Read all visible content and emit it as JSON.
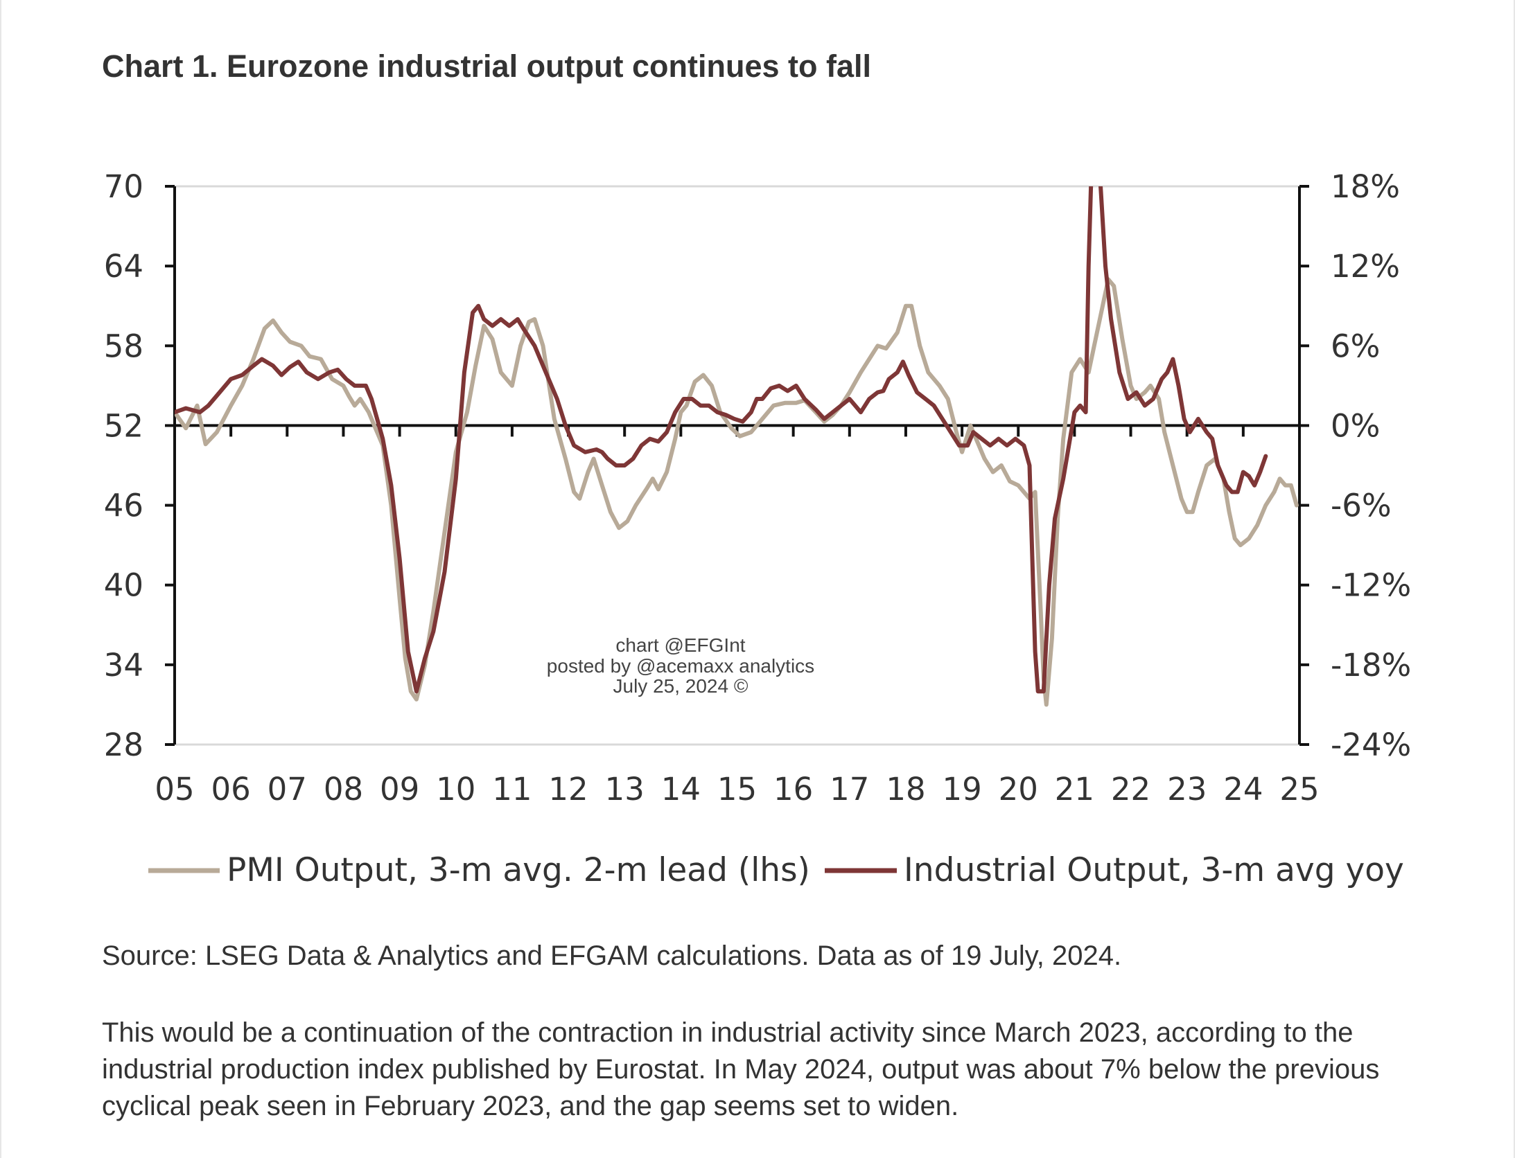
{
  "title": "Chart 1. Eurozone industrial output continues to fall",
  "source": "Source: LSEG Data & Analytics and EFGAM calculations. Data as of 19 July, 2024.",
  "paragraph": "This would be a continuation of the contraction in industrial activity since March 2023, according to the industrial production index published by Eurostat. In May 2024, output was about 7% below the previous cyclical peak seen in February 2023, and the gap seems set to widen.",
  "watermark": {
    "line1": "chart @EFGInt",
    "line2": "posted by @acemaxx analytics",
    "line3": "July 25, 2024 ©"
  },
  "colors": {
    "pmi": "#b8aa98",
    "industrial": "#7e3636",
    "axis": "#111111",
    "grid": "#d9d9d9",
    "text": "#333333"
  },
  "chart_data": {
    "type": "line",
    "x_tick_labels": [
      "05",
      "06",
      "07",
      "08",
      "09",
      "10",
      "11",
      "12",
      "13",
      "14",
      "15",
      "16",
      "17",
      "18",
      "19",
      "20",
      "21",
      "22",
      "23",
      "24",
      "25"
    ],
    "x_range": [
      2005,
      2025
    ],
    "y_left": {
      "ticks": [
        "70",
        "64",
        "58",
        "52",
        "46",
        "40",
        "34",
        "28"
      ],
      "range": [
        28,
        70
      ]
    },
    "y_right": {
      "ticks": [
        "18%",
        "12%",
        "6%",
        "0%",
        "-6%",
        "-12%",
        "-18%",
        "-24%"
      ],
      "range": [
        -24,
        18
      ]
    },
    "legend": [
      "PMI Output, 3-m avg. 2-m lead (lhs)",
      "Industrial Output, 3-m avg yoy"
    ],
    "series": [
      {
        "name": "PMI Output, 3-m avg. 2-m lead (lhs)",
        "axis": "left",
        "points": [
          [
            2005.0,
            53.0
          ],
          [
            2005.2,
            51.8
          ],
          [
            2005.4,
            53.5
          ],
          [
            2005.55,
            50.6
          ],
          [
            2005.75,
            51.5
          ],
          [
            2006.0,
            53.5
          ],
          [
            2006.2,
            55.0
          ],
          [
            2006.4,
            57.0
          ],
          [
            2006.6,
            59.3
          ],
          [
            2006.75,
            59.9
          ],
          [
            2006.9,
            59.0
          ],
          [
            2007.05,
            58.3
          ],
          [
            2007.25,
            58.0
          ],
          [
            2007.4,
            57.2
          ],
          [
            2007.6,
            57.0
          ],
          [
            2007.8,
            55.5
          ],
          [
            2008.0,
            55.0
          ],
          [
            2008.1,
            54.2
          ],
          [
            2008.2,
            53.5
          ],
          [
            2008.3,
            54.0
          ],
          [
            2008.45,
            53.0
          ],
          [
            2008.55,
            52.0
          ],
          [
            2008.7,
            50.5
          ],
          [
            2008.85,
            46.0
          ],
          [
            2009.0,
            39.0
          ],
          [
            2009.1,
            34.5
          ],
          [
            2009.2,
            32.0
          ],
          [
            2009.3,
            31.4
          ],
          [
            2009.45,
            34.0
          ],
          [
            2009.6,
            38.0
          ],
          [
            2009.8,
            44.0
          ],
          [
            2010.0,
            50.0
          ],
          [
            2010.2,
            53.0
          ],
          [
            2010.35,
            56.5
          ],
          [
            2010.5,
            59.5
          ],
          [
            2010.65,
            58.5
          ],
          [
            2010.8,
            56.0
          ],
          [
            2011.0,
            55.0
          ],
          [
            2011.15,
            58.0
          ],
          [
            2011.3,
            59.8
          ],
          [
            2011.4,
            60.0
          ],
          [
            2011.55,
            58.0
          ],
          [
            2011.75,
            52.5
          ],
          [
            2011.95,
            49.5
          ],
          [
            2012.1,
            47.0
          ],
          [
            2012.2,
            46.5
          ],
          [
            2012.35,
            48.5
          ],
          [
            2012.45,
            49.5
          ],
          [
            2012.6,
            47.5
          ],
          [
            2012.75,
            45.5
          ],
          [
            2012.9,
            44.3
          ],
          [
            2013.05,
            44.8
          ],
          [
            2013.2,
            46.0
          ],
          [
            2013.4,
            47.3
          ],
          [
            2013.5,
            48.0
          ],
          [
            2013.6,
            47.2
          ],
          [
            2013.75,
            48.5
          ],
          [
            2013.9,
            51.0
          ],
          [
            2014.0,
            53.0
          ],
          [
            2014.1,
            53.5
          ],
          [
            2014.25,
            55.3
          ],
          [
            2014.4,
            55.8
          ],
          [
            2014.55,
            55.0
          ],
          [
            2014.7,
            53.0
          ],
          [
            2014.9,
            51.8
          ],
          [
            2015.05,
            51.2
          ],
          [
            2015.25,
            51.5
          ],
          [
            2015.45,
            52.5
          ],
          [
            2015.65,
            53.5
          ],
          [
            2015.85,
            53.7
          ],
          [
            2016.05,
            53.7
          ],
          [
            2016.2,
            53.9
          ],
          [
            2016.4,
            53.0
          ],
          [
            2016.55,
            52.3
          ],
          [
            2016.7,
            52.8
          ],
          [
            2016.85,
            53.5
          ],
          [
            2017.0,
            54.5
          ],
          [
            2017.2,
            56.0
          ],
          [
            2017.35,
            57.0
          ],
          [
            2017.5,
            58.0
          ],
          [
            2017.65,
            57.8
          ],
          [
            2017.85,
            59.0
          ],
          [
            2018.0,
            61.0
          ],
          [
            2018.1,
            61.0
          ],
          [
            2018.25,
            58.0
          ],
          [
            2018.4,
            56.0
          ],
          [
            2018.6,
            55.0
          ],
          [
            2018.75,
            54.0
          ],
          [
            2018.9,
            51.5
          ],
          [
            2019.0,
            50.0
          ],
          [
            2019.15,
            52.0
          ],
          [
            2019.25,
            51.0
          ],
          [
            2019.4,
            49.5
          ],
          [
            2019.55,
            48.5
          ],
          [
            2019.7,
            49.0
          ],
          [
            2019.85,
            47.8
          ],
          [
            2020.0,
            47.5
          ],
          [
            2020.1,
            47.0
          ],
          [
            2020.2,
            46.5
          ],
          [
            2020.3,
            47.0
          ],
          [
            2020.4,
            38.0
          ],
          [
            2020.45,
            33.0
          ],
          [
            2020.5,
            31.0
          ],
          [
            2020.6,
            36.0
          ],
          [
            2020.7,
            45.0
          ],
          [
            2020.8,
            51.0
          ],
          [
            2020.95,
            56.0
          ],
          [
            2021.1,
            57.0
          ],
          [
            2021.25,
            56.0
          ],
          [
            2021.35,
            58.0
          ],
          [
            2021.5,
            61.0
          ],
          [
            2021.6,
            63.0
          ],
          [
            2021.7,
            62.5
          ],
          [
            2021.85,
            58.5
          ],
          [
            2022.0,
            55.0
          ],
          [
            2022.1,
            54.0
          ],
          [
            2022.25,
            54.5
          ],
          [
            2022.35,
            55.0
          ],
          [
            2022.5,
            54.0
          ],
          [
            2022.6,
            51.5
          ],
          [
            2022.75,
            49.0
          ],
          [
            2022.9,
            46.5
          ],
          [
            2023.0,
            45.5
          ],
          [
            2023.1,
            45.5
          ],
          [
            2023.2,
            47.0
          ],
          [
            2023.35,
            49.0
          ],
          [
            2023.5,
            49.5
          ],
          [
            2023.65,
            48.0
          ],
          [
            2023.75,
            45.5
          ],
          [
            2023.85,
            43.5
          ],
          [
            2023.95,
            43.0
          ],
          [
            2024.1,
            43.5
          ],
          [
            2024.25,
            44.5
          ],
          [
            2024.4,
            46.0
          ],
          [
            2024.55,
            47.0
          ],
          [
            2024.65,
            48.0
          ],
          [
            2024.75,
            47.5
          ],
          [
            2024.85,
            47.5
          ],
          [
            2024.95,
            46.0
          ]
        ]
      },
      {
        "name": "Industrial Output, 3-m avg yoy",
        "axis": "right",
        "points": [
          [
            2005.0,
            1.0
          ],
          [
            2005.2,
            1.3
          ],
          [
            2005.45,
            1.0
          ],
          [
            2005.6,
            1.5
          ],
          [
            2005.8,
            2.5
          ],
          [
            2006.0,
            3.5
          ],
          [
            2006.2,
            3.8
          ],
          [
            2006.4,
            4.5
          ],
          [
            2006.55,
            5.0
          ],
          [
            2006.75,
            4.5
          ],
          [
            2006.9,
            3.8
          ],
          [
            2007.05,
            4.4
          ],
          [
            2007.2,
            4.8
          ],
          [
            2007.35,
            4.0
          ],
          [
            2007.55,
            3.5
          ],
          [
            2007.75,
            4.0
          ],
          [
            2007.9,
            4.2
          ],
          [
            2008.05,
            3.5
          ],
          [
            2008.2,
            3.0
          ],
          [
            2008.4,
            3.0
          ],
          [
            2008.5,
            2.0
          ],
          [
            2008.7,
            -1.0
          ],
          [
            2008.85,
            -4.5
          ],
          [
            2009.0,
            -10.0
          ],
          [
            2009.15,
            -17.0
          ],
          [
            2009.3,
            -20.0
          ],
          [
            2009.45,
            -17.5
          ],
          [
            2009.6,
            -15.5
          ],
          [
            2009.8,
            -11.0
          ],
          [
            2010.0,
            -4.0
          ],
          [
            2010.15,
            4.0
          ],
          [
            2010.3,
            8.5
          ],
          [
            2010.4,
            9.0
          ],
          [
            2010.5,
            8.0
          ],
          [
            2010.65,
            7.5
          ],
          [
            2010.8,
            8.0
          ],
          [
            2010.95,
            7.5
          ],
          [
            2011.1,
            8.0
          ],
          [
            2011.2,
            7.3
          ],
          [
            2011.4,
            6.0
          ],
          [
            2011.6,
            4.0
          ],
          [
            2011.8,
            2.0
          ],
          [
            2011.95,
            0.0
          ],
          [
            2012.1,
            -1.5
          ],
          [
            2012.3,
            -2.0
          ],
          [
            2012.5,
            -1.8
          ],
          [
            2012.6,
            -2.0
          ],
          [
            2012.7,
            -2.5
          ],
          [
            2012.85,
            -3.0
          ],
          [
            2013.0,
            -3.0
          ],
          [
            2013.15,
            -2.5
          ],
          [
            2013.3,
            -1.5
          ],
          [
            2013.45,
            -1.0
          ],
          [
            2013.6,
            -1.2
          ],
          [
            2013.75,
            -0.5
          ],
          [
            2013.9,
            1.0
          ],
          [
            2014.05,
            2.0
          ],
          [
            2014.2,
            2.0
          ],
          [
            2014.35,
            1.5
          ],
          [
            2014.5,
            1.5
          ],
          [
            2014.65,
            1.0
          ],
          [
            2014.8,
            0.8
          ],
          [
            2014.95,
            0.5
          ],
          [
            2015.1,
            0.3
          ],
          [
            2015.25,
            1.0
          ],
          [
            2015.35,
            2.0
          ],
          [
            2015.45,
            2.0
          ],
          [
            2015.6,
            2.8
          ],
          [
            2015.75,
            3.0
          ],
          [
            2015.9,
            2.6
          ],
          [
            2016.05,
            3.0
          ],
          [
            2016.2,
            2.0
          ],
          [
            2016.4,
            1.2
          ],
          [
            2016.55,
            0.5
          ],
          [
            2016.7,
            1.0
          ],
          [
            2016.85,
            1.5
          ],
          [
            2017.0,
            2.0
          ],
          [
            2017.1,
            1.5
          ],
          [
            2017.2,
            1.0
          ],
          [
            2017.35,
            2.0
          ],
          [
            2017.5,
            2.5
          ],
          [
            2017.6,
            2.6
          ],
          [
            2017.7,
            3.5
          ],
          [
            2017.85,
            4.0
          ],
          [
            2017.95,
            4.8
          ],
          [
            2018.05,
            3.8
          ],
          [
            2018.2,
            2.5
          ],
          [
            2018.35,
            2.0
          ],
          [
            2018.5,
            1.5
          ],
          [
            2018.65,
            0.5
          ],
          [
            2018.8,
            -0.5
          ],
          [
            2018.95,
            -1.5
          ],
          [
            2019.1,
            -1.5
          ],
          [
            2019.2,
            -0.5
          ],
          [
            2019.35,
            -1.0
          ],
          [
            2019.5,
            -1.5
          ],
          [
            2019.65,
            -1.0
          ],
          [
            2019.8,
            -1.5
          ],
          [
            2019.95,
            -1.0
          ],
          [
            2020.1,
            -1.5
          ],
          [
            2020.2,
            -3.0
          ],
          [
            2020.25,
            -10.0
          ],
          [
            2020.3,
            -17.0
          ],
          [
            2020.35,
            -20.0
          ],
          [
            2020.45,
            -20.0
          ],
          [
            2020.55,
            -12.0
          ],
          [
            2020.65,
            -7.0
          ],
          [
            2020.8,
            -4.0
          ],
          [
            2020.9,
            -1.5
          ],
          [
            2021.0,
            1.0
          ],
          [
            2021.1,
            1.5
          ],
          [
            2021.2,
            1.0
          ],
          [
            2021.25,
            12.0
          ],
          [
            2021.3,
            19.0
          ],
          [
            2021.45,
            19.0
          ],
          [
            2021.55,
            12.0
          ],
          [
            2021.65,
            8.0
          ],
          [
            2021.8,
            4.0
          ],
          [
            2021.95,
            2.0
          ],
          [
            2022.1,
            2.5
          ],
          [
            2022.25,
            1.5
          ],
          [
            2022.4,
            2.0
          ],
          [
            2022.55,
            3.5
          ],
          [
            2022.65,
            4.0
          ],
          [
            2022.75,
            5.0
          ],
          [
            2022.85,
            3.0
          ],
          [
            2022.95,
            0.5
          ],
          [
            2023.05,
            -0.5
          ],
          [
            2023.2,
            0.5
          ],
          [
            2023.35,
            -0.5
          ],
          [
            2023.45,
            -1.0
          ],
          [
            2023.55,
            -3.0
          ],
          [
            2023.7,
            -4.5
          ],
          [
            2023.8,
            -5.0
          ],
          [
            2023.9,
            -5.0
          ],
          [
            2024.0,
            -3.5
          ],
          [
            2024.1,
            -3.8
          ],
          [
            2024.2,
            -4.5
          ],
          [
            2024.3,
            -3.5
          ],
          [
            2024.4,
            -2.3
          ]
        ]
      }
    ]
  }
}
